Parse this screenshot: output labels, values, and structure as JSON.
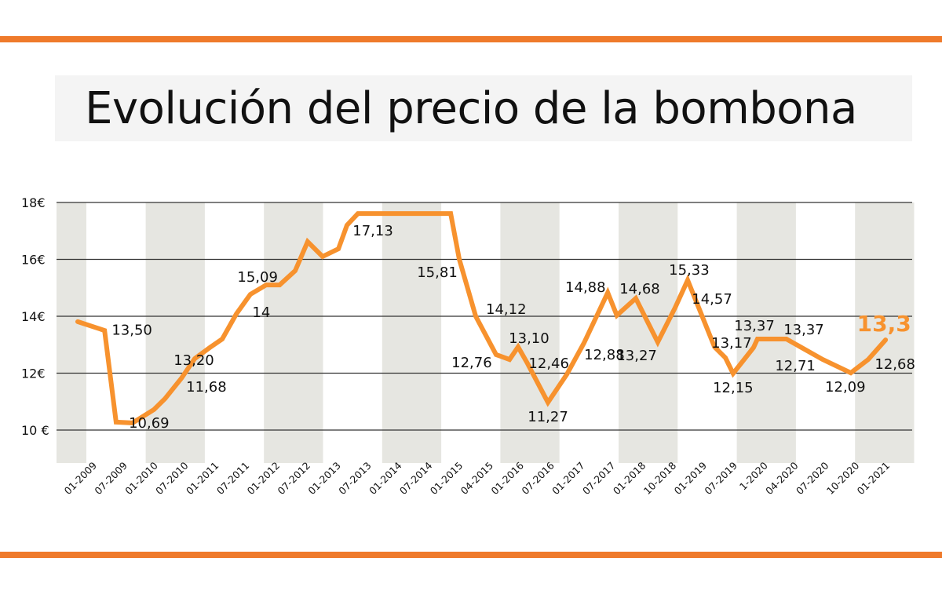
{
  "colors": {
    "accent_bar": "#ef7a2b",
    "line": "#f7922e",
    "band": "#e6e6e1",
    "grid": "#333333"
  },
  "chart_data": {
    "type": "line",
    "title": "Evolución del precio de la bombona",
    "xlabel": "",
    "ylabel": "",
    "ylim": [
      10,
      18
    ],
    "y_ticks": [
      {
        "value": 18,
        "label": "18€"
      },
      {
        "value": 16,
        "label": "16€"
      },
      {
        "value": 14,
        "label": "14€"
      },
      {
        "value": 12,
        "label": "12€"
      },
      {
        "value": 10,
        "label": "10 €"
      }
    ],
    "grid": "horizontal",
    "categories": [
      "01-2009",
      "07-2009",
      "01-2010",
      "07-2010",
      "01-2011",
      "07-2011",
      "01-2012",
      "07-2012",
      "01-2013",
      "07-2013",
      "01-2014",
      "07-2014",
      "01-2015",
      "04-2015",
      "01-2016",
      "07-2016",
      "01-2017",
      "07-2017",
      "01-2018",
      "10-2018",
      "01-2019",
      "07-2019",
      "1-2020",
      "04-2020",
      "07-2020",
      "10-2020",
      "01-2021"
    ],
    "series": [
      {
        "points": [
          [
            -0.49,
            13.81
          ],
          [
            0.39,
            13.5
          ],
          [
            0.77,
            10.28
          ],
          [
            1.31,
            10.25
          ],
          [
            2.01,
            10.72
          ],
          [
            2.37,
            11.1
          ],
          [
            2.91,
            11.82
          ],
          [
            3.35,
            12.51
          ],
          [
            3.84,
            12.9
          ],
          [
            4.25,
            13.2
          ],
          [
            4.71,
            14.08
          ],
          [
            5.17,
            14.77
          ],
          [
            5.69,
            15.1
          ],
          [
            6.13,
            15.1
          ],
          [
            6.64,
            15.6
          ],
          [
            7.05,
            16.62
          ],
          [
            7.54,
            16.1
          ],
          [
            8.06,
            16.37
          ],
          [
            8.34,
            17.2
          ],
          [
            8.7,
            17.61
          ],
          [
            11.74,
            17.61
          ],
          [
            12.02,
            16.01
          ],
          [
            12.56,
            14.0
          ],
          [
            13.23,
            12.65
          ],
          [
            13.67,
            12.48
          ],
          [
            13.95,
            12.92
          ],
          [
            14.26,
            12.34
          ],
          [
            14.93,
            10.97
          ],
          [
            15.55,
            11.96
          ],
          [
            16.11,
            13.06
          ],
          [
            16.89,
            14.83
          ],
          [
            17.19,
            14.03
          ],
          [
            17.81,
            14.63
          ],
          [
            18.53,
            13.09
          ],
          [
            19.1,
            14.3
          ],
          [
            19.51,
            15.27
          ],
          [
            20.39,
            12.92
          ],
          [
            20.75,
            12.54
          ],
          [
            21.0,
            11.99
          ],
          [
            21.67,
            12.9
          ],
          [
            21.8,
            13.2
          ],
          [
            22.75,
            13.2
          ],
          [
            23.94,
            12.48
          ],
          [
            24.86,
            12.01
          ],
          [
            25.43,
            12.48
          ],
          [
            26.0,
            13.17
          ]
        ]
      }
    ],
    "annotations": [
      {
        "text": "13,50",
        "x": 1.29,
        "y": 13.55
      },
      {
        "text": "10,69",
        "x": 1.85,
        "y": 10.28
      },
      {
        "text": "13,20",
        "x": 3.32,
        "y": 12.48
      },
      {
        "text": "11,68",
        "x": 3.73,
        "y": 11.54
      },
      {
        "text": "15,09",
        "x": 5.41,
        "y": 15.41
      },
      {
        "text": "14",
        "x": 5.53,
        "y": 14.17
      },
      {
        "text": "17,13",
        "x": 9.19,
        "y": 17.03
      },
      {
        "text": "15,81",
        "x": 11.3,
        "y": 15.57
      },
      {
        "text": "12,76",
        "x": 12.43,
        "y": 12.4
      },
      {
        "text": "14,12",
        "x": 13.56,
        "y": 14.28
      },
      {
        "text": "13,10",
        "x": 14.31,
        "y": 13.26
      },
      {
        "text": "12,46",
        "x": 14.96,
        "y": 12.37
      },
      {
        "text": "11,27",
        "x": 14.93,
        "y": 10.5
      },
      {
        "text": "14,88",
        "x": 16.16,
        "y": 15.05
      },
      {
        "text": "12,88",
        "x": 16.78,
        "y": 12.68
      },
      {
        "text": "14,68",
        "x": 17.94,
        "y": 14.99
      },
      {
        "text": "13,27",
        "x": 17.84,
        "y": 12.65
      },
      {
        "text": "15,33",
        "x": 19.56,
        "y": 15.66
      },
      {
        "text": "14,57",
        "x": 20.31,
        "y": 14.63
      },
      {
        "text": "13,17",
        "x": 20.95,
        "y": 13.09
      },
      {
        "text": "12,15",
        "x": 21.0,
        "y": 11.52
      },
      {
        "text": "13,37",
        "x": 21.7,
        "y": 13.7
      },
      {
        "text": "13,37",
        "x": 23.32,
        "y": 13.56
      },
      {
        "text": "12,71",
        "x": 23.04,
        "y": 12.29
      },
      {
        "text": "12,09",
        "x": 24.68,
        "y": 11.54
      },
      {
        "text": "12,68",
        "x": 26.31,
        "y": 12.34
      },
      {
        "text": "13,3",
        "x": 25.95,
        "y": 13.67,
        "highlight": true
      }
    ]
  }
}
